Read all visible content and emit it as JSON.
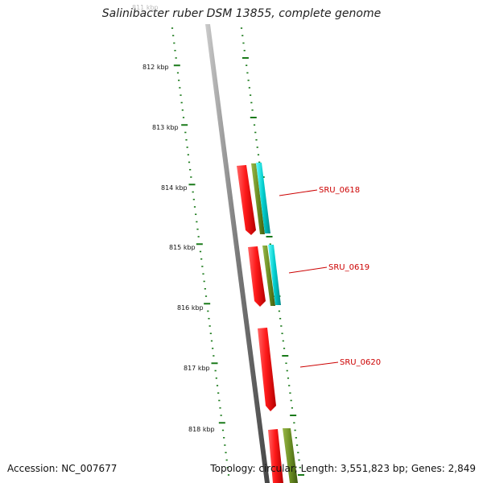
{
  "title": "Salinibacter ruber DSM 13855, complete genome",
  "footer": {
    "accession": "Accession: NC_007677",
    "topology": "Topology: circular; Length: 3,551,823 bp; Genes: 2,849"
  },
  "ticks": [
    {
      "label": "811 kbp",
      "faded": true
    },
    {
      "label": "812 kbp"
    },
    {
      "label": "813 kbp"
    },
    {
      "label": "814 kbp"
    },
    {
      "label": "815 kbp"
    },
    {
      "label": "816 kbp"
    },
    {
      "label": "817 kbp"
    },
    {
      "label": "818 kbp"
    }
  ],
  "genes": [
    {
      "label": "SRU_0618"
    },
    {
      "label": "SRU_0619"
    },
    {
      "label": "SRU_0620"
    }
  ],
  "colors": {
    "backbone": "#888888",
    "tick": "#1a7a1a",
    "gene_red": "#ff1a1a",
    "gene_olive": "#6b8e23",
    "gene_cyan": "#00cccc",
    "label_red": "#cc0000"
  }
}
